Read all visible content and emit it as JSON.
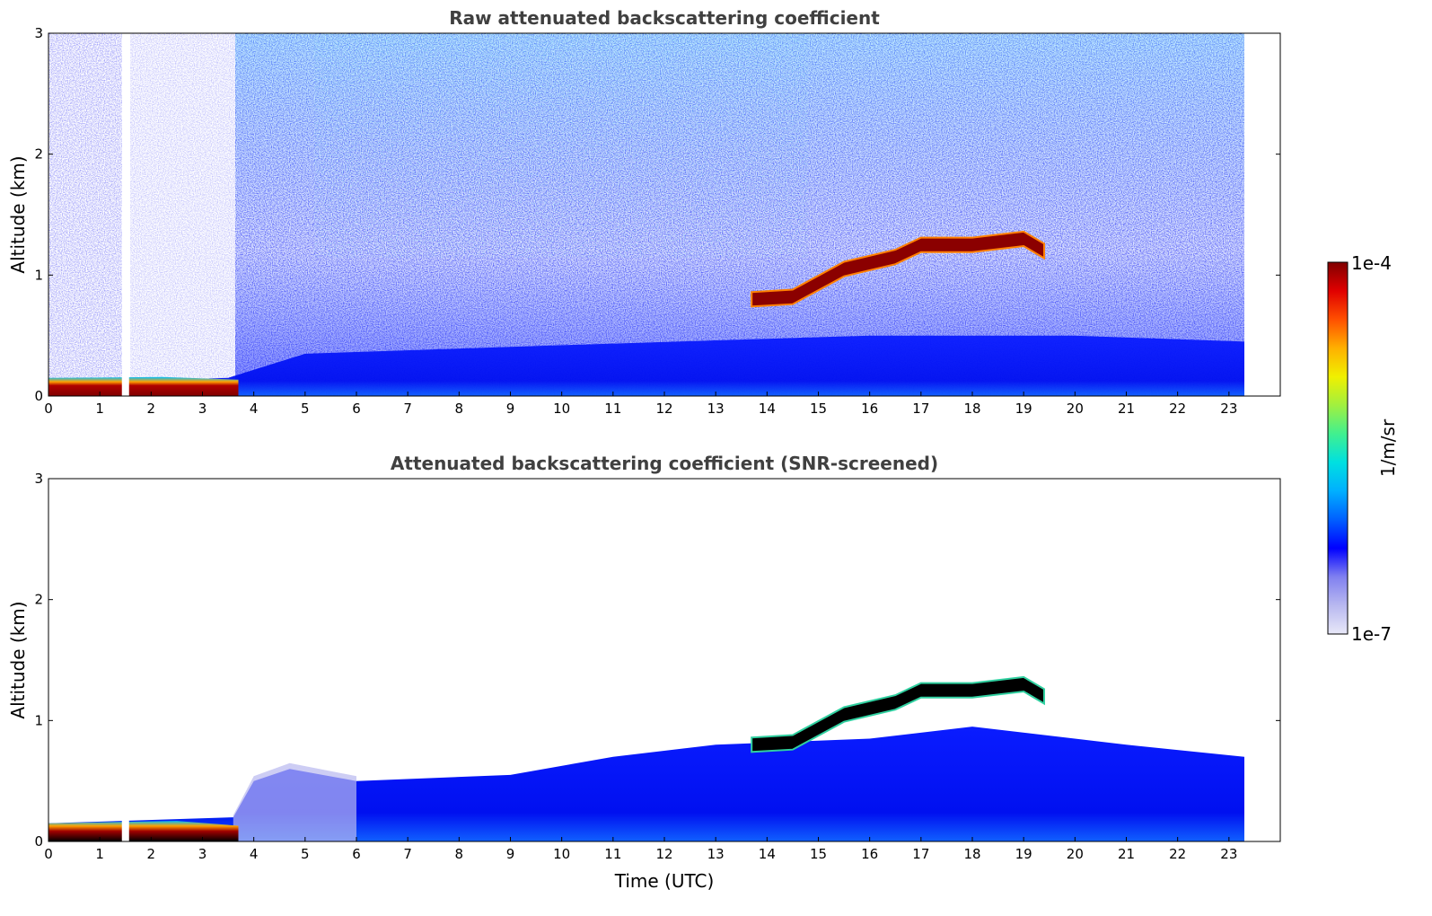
{
  "chart_data": [
    {
      "type": "heatmap",
      "title": "Raw attenuated backscattering coefficient",
      "xlabel": "",
      "ylabel": "Altitude (km)",
      "xlim": [
        0,
        24
      ],
      "ylim": [
        0,
        3
      ],
      "xticks": [
        "0",
        "1",
        "2",
        "3",
        "4",
        "5",
        "6",
        "7",
        "8",
        "9",
        "10",
        "11",
        "12",
        "13",
        "14",
        "15",
        "16",
        "17",
        "18",
        "19",
        "20",
        "21",
        "22",
        "23"
      ],
      "yticks": [
        "0",
        "1",
        "2",
        "3"
      ],
      "data_end_hour": 23.3,
      "features": {
        "surface_layer": {
          "start": 0,
          "end": 3.7,
          "top_km": 0.15
        },
        "boundary_layer_top_km": [
          [
            0,
            0.1
          ],
          [
            3.5,
            0.15
          ],
          [
            5,
            0.35
          ],
          [
            10,
            0.42
          ],
          [
            16,
            0.5
          ],
          [
            20,
            0.5
          ],
          [
            23.3,
            0.45
          ]
        ],
        "cloud_layer": [
          [
            13.7,
            0.8
          ],
          [
            14.5,
            0.82
          ],
          [
            15.5,
            1.05
          ],
          [
            16.5,
            1.15
          ],
          [
            17,
            1.25
          ],
          [
            18,
            1.25
          ],
          [
            19,
            1.3
          ],
          [
            19.4,
            1.2
          ]
        ],
        "gap_hour": 1.5
      }
    },
    {
      "type": "heatmap",
      "title": "Attenuated backscattering coefficient (SNR-screened)",
      "xlabel": "Time (UTC)",
      "ylabel": "Altitude (km)",
      "xlim": [
        0,
        24
      ],
      "ylim": [
        0,
        3
      ],
      "xticks": [
        "0",
        "1",
        "2",
        "3",
        "4",
        "5",
        "6",
        "7",
        "8",
        "9",
        "10",
        "11",
        "12",
        "13",
        "14",
        "15",
        "16",
        "17",
        "18",
        "19",
        "20",
        "21",
        "22",
        "23"
      ],
      "yticks": [
        "0",
        "1",
        "2",
        "3"
      ],
      "data_end_hour": 23.3,
      "features": {
        "aerosol_top_km": [
          [
            0,
            0.15
          ],
          [
            3.6,
            0.2
          ],
          [
            4,
            0.5
          ],
          [
            4.7,
            0.6
          ],
          [
            6,
            0.5
          ],
          [
            9,
            0.55
          ],
          [
            11,
            0.7
          ],
          [
            13,
            0.8
          ],
          [
            16,
            0.85
          ],
          [
            18,
            0.95
          ],
          [
            21,
            0.8
          ],
          [
            23.3,
            0.7
          ]
        ],
        "cloud_layer": [
          [
            13.7,
            0.8
          ],
          [
            14.5,
            0.82
          ],
          [
            15.5,
            1.05
          ],
          [
            16.5,
            1.15
          ],
          [
            17,
            1.25
          ],
          [
            18,
            1.25
          ],
          [
            19,
            1.3
          ],
          [
            19.4,
            1.2
          ]
        ]
      }
    }
  ],
  "colorbar": {
    "label": "1/m/sr",
    "max_label": "1e-4",
    "min_label": "1e-7",
    "colors": [
      "#e8e8f8",
      "#b8b8f0",
      "#8080f0",
      "#0000ff",
      "#0060ff",
      "#00b0ff",
      "#00e0e0",
      "#40f090",
      "#a0f040",
      "#f0f000",
      "#ffb000",
      "#ff5000",
      "#e00000",
      "#800000"
    ]
  }
}
